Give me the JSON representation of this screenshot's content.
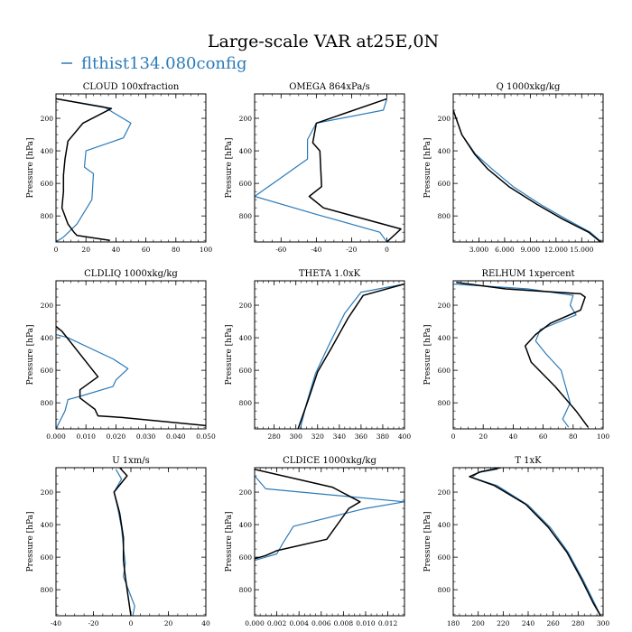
{
  "figure": {
    "title": "Large-scale VAR at25E,0N",
    "legend": [
      {
        "name": "flthist134.080config",
        "color": "#2b7bb9"
      }
    ]
  },
  "colors": {
    "reference": "#000000",
    "config": "#2b7bb9"
  },
  "chart_data": [
    {
      "type": "line",
      "title": "CLOUD  100xfraction",
      "ylabel": "Pressure [hPa]",
      "xlim": [
        0,
        100
      ],
      "ylim": [
        960,
        50
      ],
      "xticks": [
        0,
        20,
        40,
        60,
        80,
        100
      ],
      "xtick_labels": [
        "0",
        "20",
        "40",
        "60",
        "80",
        "100"
      ],
      "yticks": [
        200,
        400,
        600,
        800
      ],
      "series": [
        {
          "name": "flthist134.080config",
          "color": "#2b7bb9",
          "x": [
            0,
            32,
            50,
            45,
            20,
            19,
            25,
            24,
            14,
            5,
            0
          ],
          "y": [
            80,
            130,
            230,
            320,
            400,
            500,
            540,
            700,
            850,
            930,
            960
          ]
        },
        {
          "color": "#000000",
          "x": [
            0,
            37,
            18,
            8,
            6,
            5,
            5,
            4,
            8,
            12,
            14,
            36
          ],
          "y": [
            80,
            140,
            230,
            340,
            450,
            550,
            650,
            750,
            850,
            900,
            920,
            950
          ]
        }
      ]
    },
    {
      "type": "line",
      "title": "OMEGA  864xPa/s",
      "ylabel": "Pressure [hPa]",
      "xlim": [
        -75,
        10
      ],
      "ylim": [
        960,
        50
      ],
      "xticks": [
        -60,
        -40,
        -20,
        0
      ],
      "xtick_labels": [
        "-60",
        "-40",
        "-20",
        "0"
      ],
      "yticks": [
        200,
        400,
        600,
        800
      ],
      "series": [
        {
          "name": "flthist134.080config",
          "color": "#2b7bb9",
          "x": [
            0,
            -2,
            -40,
            -45,
            -45,
            -58,
            -75,
            -40,
            -4,
            0
          ],
          "y": [
            80,
            150,
            230,
            330,
            450,
            550,
            680,
            790,
            900,
            960
          ]
        },
        {
          "color": "#000000",
          "x": [
            0,
            -40,
            -42,
            -38,
            -37,
            -44,
            -36,
            8,
            0
          ],
          "y": [
            80,
            230,
            350,
            400,
            620,
            680,
            750,
            880,
            960
          ]
        }
      ]
    },
    {
      "type": "line",
      "title": "Q  1000xkg/kg",
      "ylabel": "Pressure [hPa]",
      "xlim": [
        0,
        17500
      ],
      "ylim": [
        960,
        50
      ],
      "xticks": [
        3000,
        6000,
        9000,
        12000,
        15000
      ],
      "xtick_labels": [
        "3.000",
        "6.000",
        "9.000",
        "12.000",
        "15.000"
      ],
      "yticks": [
        200,
        400,
        600,
        800
      ],
      "series": [
        {
          "name": "flthist134.080config",
          "color": "#2b7bb9",
          "x": [
            0,
            1000,
            2600,
            4500,
            7000,
            10200,
            13200,
            16000,
            17300
          ],
          "y": [
            150,
            300,
            420,
            510,
            620,
            730,
            820,
            900,
            960
          ]
        },
        {
          "color": "#000000",
          "x": [
            0,
            1000,
            2500,
            4000,
            6500,
            9800,
            12800,
            15800,
            17200
          ],
          "y": [
            150,
            300,
            420,
            510,
            620,
            730,
            820,
            900,
            960
          ]
        }
      ]
    },
    {
      "type": "line",
      "title": "CLDLIQ  1000xkg/kg",
      "ylabel": "Pressure [hPa]",
      "xlim": [
        0,
        0.05
      ],
      "ylim": [
        960,
        50
      ],
      "xticks": [
        0,
        0.01,
        0.02,
        0.03,
        0.04,
        0.05
      ],
      "xtick_labels": [
        "0.000",
        "0.010",
        "0.020",
        "0.030",
        "0.040",
        "0.050"
      ],
      "yticks": [
        200,
        400,
        600,
        800
      ],
      "series": [
        {
          "name": "flthist134.080config",
          "color": "#2b7bb9",
          "x": [
            0,
            0.004,
            0.019,
            0.024,
            0.02,
            0.019,
            0.008,
            0.004,
            0.003,
            0.0
          ],
          "y": [
            380,
            400,
            530,
            590,
            660,
            700,
            760,
            780,
            850,
            960
          ]
        },
        {
          "color": "#000000",
          "x": [
            0,
            0.002,
            0.014,
            0.008,
            0.008,
            0.013,
            0.014,
            0.022,
            0.05
          ],
          "y": [
            330,
            360,
            640,
            720,
            770,
            840,
            880,
            890,
            940
          ]
        }
      ]
    },
    {
      "type": "line",
      "title": "THETA  1.0xK",
      "ylabel": "Pressure [hPa]",
      "xlim": [
        262,
        400
      ],
      "ylim": [
        960,
        50
      ],
      "xticks": [
        280,
        300,
        320,
        340,
        360,
        380,
        400
      ],
      "xtick_labels": [
        "280",
        "300",
        "320",
        "340",
        "360",
        "380",
        "400"
      ],
      "yticks": [
        200,
        400,
        600,
        800
      ],
      "series": [
        {
          "name": "flthist134.080config",
          "color": "#2b7bb9",
          "x": [
            400,
            360,
            345,
            330,
            318,
            310,
            304
          ],
          "y": [
            70,
            120,
            250,
            450,
            620,
            800,
            960
          ]
        },
        {
          "color": "#000000",
          "x": [
            400,
            362,
            348,
            333,
            320,
            311,
            302
          ],
          "y": [
            70,
            140,
            280,
            460,
            610,
            790,
            960
          ]
        }
      ]
    },
    {
      "type": "line",
      "title": "RELHUM  1xpercent",
      "ylabel": "Pressure [hPa]",
      "xlim": [
        0,
        100
      ],
      "ylim": [
        960,
        50
      ],
      "xticks": [
        0,
        20,
        40,
        60,
        80,
        100
      ],
      "xtick_labels": [
        "0",
        "20",
        "40",
        "60",
        "80",
        "100"
      ],
      "yticks": [
        200,
        400,
        600,
        800
      ],
      "series": [
        {
          "name": "flthist134.080config",
          "color": "#2b7bb9",
          "x": [
            0,
            50,
            80,
            78,
            82,
            58,
            55,
            62,
            72,
            75,
            78,
            73,
            77
          ],
          "y": [
            70,
            100,
            140,
            200,
            260,
            350,
            420,
            500,
            600,
            700,
            800,
            900,
            950
          ]
        },
        {
          "color": "#000000",
          "x": [
            2,
            35,
            85,
            88,
            85,
            65,
            55,
            48,
            52,
            68,
            82,
            90
          ],
          "y": [
            60,
            100,
            130,
            150,
            230,
            310,
            380,
            450,
            550,
            700,
            850,
            950
          ]
        }
      ]
    },
    {
      "type": "line",
      "title": "U  1xm/s",
      "ylabel": "Pressure [hPa]",
      "xlim": [
        -40,
        40
      ],
      "ylim": [
        960,
        50
      ],
      "xticks": [
        -40,
        -20,
        0,
        20,
        40
      ],
      "xtick_labels": [
        "-40",
        "-20",
        "0",
        "20",
        "40"
      ],
      "yticks": [
        200,
        400,
        600,
        800
      ],
      "series": [
        {
          "name": "flthist134.080config",
          "color": "#2b7bb9",
          "x": [
            -8,
            -5,
            -9,
            -7,
            -5,
            -4,
            -3,
            -4,
            0,
            2,
            1
          ],
          "y": [
            60,
            120,
            200,
            300,
            420,
            540,
            640,
            720,
            840,
            900,
            960
          ]
        },
        {
          "color": "#000000",
          "x": [
            -6,
            -2,
            -9,
            -6,
            -4,
            -4,
            -3,
            -2,
            -1,
            0
          ],
          "y": [
            50,
            100,
            200,
            330,
            480,
            620,
            720,
            800,
            880,
            960
          ]
        }
      ]
    },
    {
      "type": "line",
      "title": "CLDICE  1000xkg/kg",
      "ylabel": "Pressure [hPa]",
      "xlim": [
        0,
        0.0135
      ],
      "ylim": [
        960,
        50
      ],
      "xticks": [
        0,
        0.002,
        0.004,
        0.006,
        0.008,
        0.01,
        0.012
      ],
      "xtick_labels": [
        "0.000",
        "0.002",
        "0.004",
        "0.006",
        "0.008",
        "0.010",
        "0.012"
      ],
      "yticks": [
        200,
        400,
        600,
        800
      ],
      "series": [
        {
          "name": "flthist134.080config",
          "color": "#2b7bb9",
          "x": [
            0,
            0.001,
            0.0135,
            0.01,
            0.0035,
            0.0025,
            0.002,
            0.001,
            0
          ],
          "y": [
            100,
            180,
            260,
            300,
            410,
            520,
            580,
            600,
            620
          ]
        },
        {
          "color": "#000000",
          "x": [
            0,
            0.007,
            0.0095,
            0.0085,
            0.0065,
            0.002,
            0.001,
            0
          ],
          "y": [
            60,
            170,
            260,
            300,
            490,
            560,
            590,
            610
          ]
        }
      ]
    },
    {
      "type": "line",
      "title": "T  1xK",
      "ylabel": "Pressure [hPa]",
      "xlim": [
        180,
        300
      ],
      "ylim": [
        960,
        50
      ],
      "xticks": [
        180,
        200,
        220,
        240,
        260,
        280,
        300
      ],
      "xtick_labels": [
        "180",
        "200",
        "220",
        "240",
        "260",
        "280",
        "300"
      ],
      "yticks": [
        200,
        400,
        600,
        800
      ],
      "series": [
        {
          "name": "flthist134.080config",
          "color": "#2b7bb9",
          "x": [
            215,
            200,
            195,
            215,
            240,
            258,
            272,
            284,
            293,
            298
          ],
          "y": [
            60,
            80,
            110,
            160,
            280,
            420,
            570,
            740,
            880,
            960
          ]
        },
        {
          "color": "#000000",
          "x": [
            218,
            202,
            193,
            213,
            238,
            256,
            271,
            283,
            292,
            298
          ],
          "y": [
            50,
            75,
            105,
            160,
            275,
            415,
            570,
            740,
            880,
            960
          ]
        }
      ]
    }
  ]
}
